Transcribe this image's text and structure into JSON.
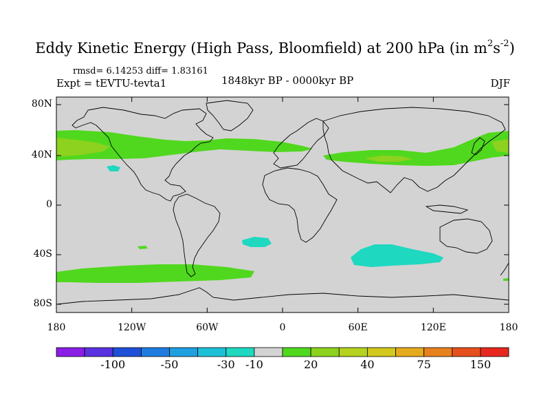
{
  "title": {
    "main": "Eddy Kinetic Energy (High Pass, Bloomfield) at 200 hPa (in m",
    "sup1": "2",
    "mid": "s",
    "sup2": "-2",
    "end": ")"
  },
  "stats": "rmsd= 6.14253 diff= 1.83161",
  "experiment": "Expt = tEVTU-tevta1",
  "period": "1848kyr BP - 0000kyr BP",
  "season": "DJF",
  "colors": {
    "land_background": "#d3d3d3",
    "coast": "#000000"
  },
  "axes": {
    "lat_ticks": [
      "80N",
      "40N",
      "0",
      "40S",
      "80S"
    ],
    "lon_ticks": [
      "180",
      "120W",
      "60W",
      "0",
      "60E",
      "120E",
      "180"
    ]
  },
  "colorbar": {
    "colors": [
      "#8a1ee6",
      "#5a32e0",
      "#1e50d8",
      "#1e7ce0",
      "#1ea0e0",
      "#1ec0d8",
      "#1ed8c0",
      "#d3d3d3",
      "#50d81e",
      "#8cd21e",
      "#b4d21e",
      "#d2c81e",
      "#e6aa1e",
      "#e6821e",
      "#e6501e",
      "#e6281e"
    ],
    "labels": [
      "-100",
      "-50",
      "-30",
      "-10",
      "20",
      "40",
      "75",
      "150"
    ]
  },
  "bands": [
    {
      "name": "north-pacific-jet",
      "color": "#50d81e"
    },
    {
      "name": "north-pacific-core",
      "color": "#8cd21e"
    },
    {
      "name": "north-atlantic-jet",
      "color": "#50d81e"
    },
    {
      "name": "asia-jet",
      "color": "#50d81e"
    },
    {
      "name": "asia-core",
      "color": "#8cd21e"
    },
    {
      "name": "southern-jet",
      "color": "#50d81e"
    },
    {
      "name": "indian-ocean-negative",
      "color": "#1ed8c0"
    },
    {
      "name": "south-atlantic-negative",
      "color": "#1ed8c0"
    },
    {
      "name": "pacific-negative",
      "color": "#1ed8c0"
    }
  ]
}
